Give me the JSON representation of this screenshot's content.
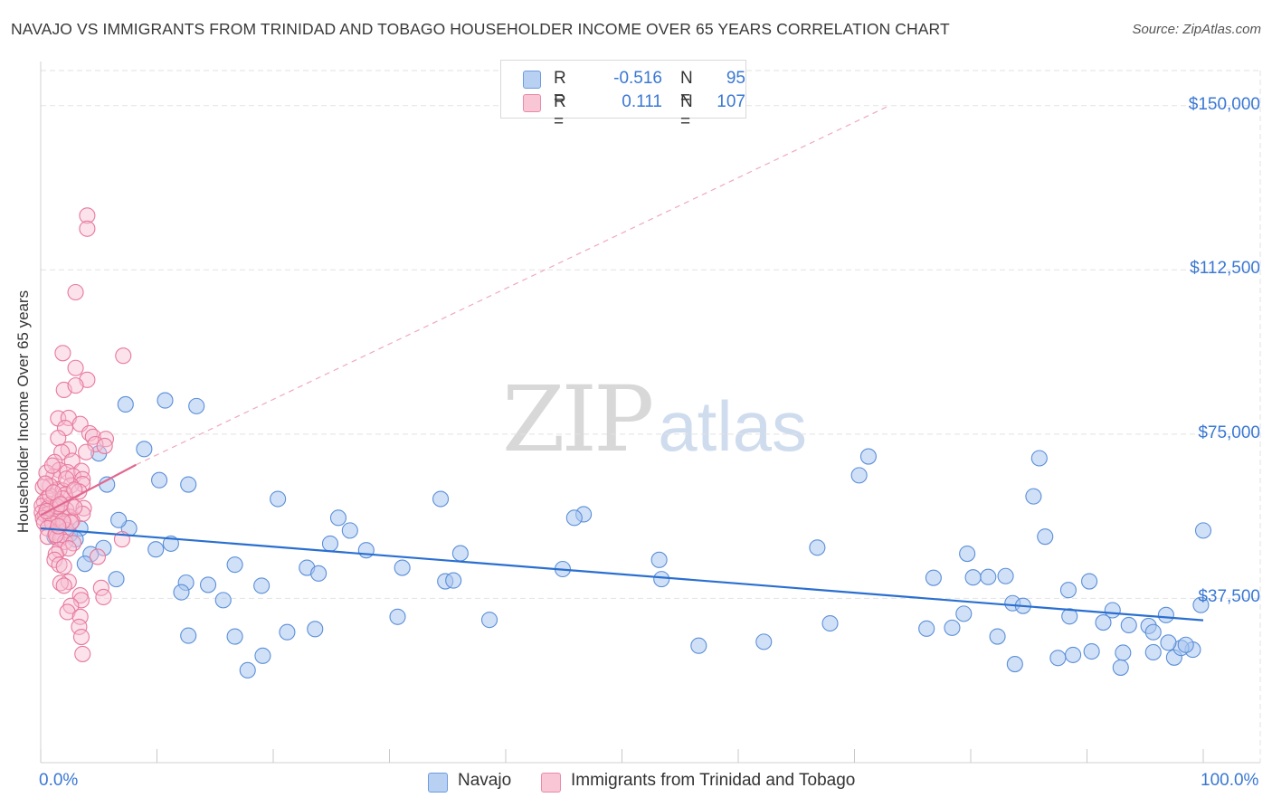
{
  "title": "NAVAJO VS IMMIGRANTS FROM TRINIDAD AND TOBAGO HOUSEHOLDER INCOME OVER 65 YEARS CORRELATION CHART",
  "source": "Source: ZipAtlas.com",
  "watermark": {
    "part1": "ZIP",
    "part2": "atlas"
  },
  "legend": {
    "rows": [
      {
        "r_label": "R =",
        "r_value": "-0.516",
        "n_label": "N =",
        "n_value": "95"
      },
      {
        "r_label": "R =",
        "r_value": "0.111",
        "n_label": "N =",
        "n_value": "107"
      }
    ]
  },
  "colors": {
    "navajo_fill": "#a9c7f0",
    "navajo_stroke": "#5b8fd8",
    "navajo_line": "#2a6fd0",
    "tt_fill": "#f7bfd2",
    "tt_stroke": "#e8799c",
    "tt_line": "#e06890",
    "axis_text": "#3a78d4",
    "grid": "#e2e2e2"
  },
  "chart_data": {
    "type": "scatter",
    "title": "NAVAJO VS IMMIGRANTS FROM TRINIDAD AND TOBAGO HOUSEHOLDER INCOME OVER 65 YEARS CORRELATION CHART",
    "xlabel": "",
    "ylabel": "Householder Income Over 65 years",
    "xlim": [
      0,
      100
    ],
    "ylim": [
      0,
      158000
    ],
    "x_tick_labels": [
      "0.0%",
      "100.0%"
    ],
    "y_ticks": [
      37500,
      75000,
      112500,
      150000
    ],
    "y_tick_labels": [
      "$37,500",
      "$75,000",
      "$112,500",
      "$150,000"
    ],
    "legend_position": "top-center",
    "series": [
      {
        "name": "Navajo",
        "r": -0.516,
        "n": 95,
        "trend": {
          "x0": 0,
          "y0": 53500,
          "x1": 100,
          "y1": 32500
        },
        "points": [
          [
            7.3,
            81800
          ],
          [
            10.7,
            82700
          ],
          [
            13.4,
            81400
          ],
          [
            5,
            70600
          ],
          [
            8.9,
            71600
          ],
          [
            10.2,
            64500
          ],
          [
            12.7,
            63500
          ],
          [
            5.7,
            63500
          ],
          [
            20.4,
            60200
          ],
          [
            34.4,
            60200
          ],
          [
            46.7,
            56700
          ],
          [
            45.9,
            55900
          ],
          [
            25.6,
            55900
          ],
          [
            26.6,
            53000
          ],
          [
            7.6,
            53500
          ],
          [
            6.7,
            55400
          ],
          [
            3.4,
            53500
          ],
          [
            1.2,
            51600
          ],
          [
            1.6,
            55400
          ],
          [
            2.5,
            52100
          ],
          [
            11.2,
            50000
          ],
          [
            24.9,
            50000
          ],
          [
            28,
            48500
          ],
          [
            36.1,
            47800
          ],
          [
            9.9,
            48700
          ],
          [
            5.4,
            49000
          ],
          [
            4.3,
            47600
          ],
          [
            3,
            51000
          ],
          [
            3.8,
            45400
          ],
          [
            16.7,
            45200
          ],
          [
            22.9,
            44500
          ],
          [
            31.1,
            44500
          ],
          [
            23.9,
            43200
          ],
          [
            44.9,
            44200
          ],
          [
            53.2,
            46300
          ],
          [
            53.4,
            41900
          ],
          [
            34.8,
            41400
          ],
          [
            35.5,
            41600
          ],
          [
            12.5,
            41100
          ],
          [
            14.4,
            40600
          ],
          [
            19,
            40400
          ],
          [
            6.5,
            41900
          ],
          [
            12.1,
            38900
          ],
          [
            15.7,
            37100
          ],
          [
            71.2,
            69900
          ],
          [
            70.4,
            65600
          ],
          [
            85.9,
            69500
          ],
          [
            85.4,
            60800
          ],
          [
            86.4,
            51600
          ],
          [
            83,
            42600
          ],
          [
            81.5,
            42400
          ],
          [
            80.2,
            42300
          ],
          [
            88.4,
            39400
          ],
          [
            90.2,
            41400
          ],
          [
            83.6,
            36400
          ],
          [
            100,
            53000
          ],
          [
            66.8,
            49100
          ],
          [
            79.7,
            47700
          ],
          [
            76.8,
            42200
          ],
          [
            84.5,
            35800
          ],
          [
            79.4,
            34000
          ],
          [
            92.2,
            34800
          ],
          [
            88.5,
            33400
          ],
          [
            91.4,
            32000
          ],
          [
            93.6,
            31400
          ],
          [
            95.3,
            31200
          ],
          [
            95.7,
            29800
          ],
          [
            96.8,
            33700
          ],
          [
            99.8,
            36000
          ],
          [
            78.4,
            30800
          ],
          [
            82.3,
            28800
          ],
          [
            76.2,
            30600
          ],
          [
            67.9,
            31800
          ],
          [
            62.2,
            27600
          ],
          [
            56.6,
            26700
          ],
          [
            30.7,
            33300
          ],
          [
            38.6,
            32600
          ],
          [
            23.6,
            30500
          ],
          [
            21.2,
            29800
          ],
          [
            16.7,
            28800
          ],
          [
            12.7,
            29000
          ],
          [
            19.1,
            24400
          ],
          [
            17.8,
            21100
          ],
          [
            88.8,
            24600
          ],
          [
            90.4,
            25400
          ],
          [
            93.1,
            25100
          ],
          [
            92.9,
            21700
          ],
          [
            95.7,
            25200
          ],
          [
            97.5,
            24000
          ],
          [
            99.1,
            25800
          ],
          [
            98.1,
            26200
          ],
          [
            83.8,
            22500
          ],
          [
            87.5,
            23900
          ],
          [
            97,
            27400
          ],
          [
            98.5,
            26900
          ]
        ]
      },
      {
        "name": "Immigrants from Trinidad and Tobago",
        "r": 0.111,
        "n": 107,
        "trend_solid": {
          "x0": 0,
          "y0": 56500,
          "x1": 8.2,
          "y1": 68000
        },
        "trend_dashed": {
          "x0": 8.2,
          "y0": 68000,
          "x1": 73,
          "y1": 150000
        },
        "points": [
          [
            4,
            124900
          ],
          [
            4,
            121900
          ],
          [
            3,
            107400
          ],
          [
            1.9,
            93500
          ],
          [
            7.1,
            92900
          ],
          [
            3,
            90100
          ],
          [
            4,
            87400
          ],
          [
            2,
            85100
          ],
          [
            3,
            86100
          ],
          [
            1.5,
            78600
          ],
          [
            2.4,
            78700
          ],
          [
            3.4,
            77300
          ],
          [
            2.1,
            76400
          ],
          [
            4.2,
            75200
          ],
          [
            4.5,
            74400
          ],
          [
            5.6,
            73900
          ],
          [
            1.5,
            74100
          ],
          [
            4.7,
            72700
          ],
          [
            2.4,
            71500
          ],
          [
            1.8,
            70900
          ],
          [
            2.7,
            68900
          ],
          [
            1.2,
            68600
          ],
          [
            1.6,
            66800
          ],
          [
            2.3,
            66300
          ],
          [
            3.5,
            66600
          ],
          [
            2.8,
            65400
          ],
          [
            3.6,
            64700
          ],
          [
            1.1,
            65300
          ],
          [
            0.5,
            66200
          ],
          [
            3.6,
            63600
          ],
          [
            2.6,
            63300
          ],
          [
            1.5,
            62400
          ],
          [
            0.8,
            63200
          ],
          [
            1.9,
            62100
          ],
          [
            0.2,
            62900
          ],
          [
            2.1,
            61200
          ],
          [
            3.3,
            61900
          ],
          [
            0.6,
            60500
          ],
          [
            0.3,
            59500
          ],
          [
            0.9,
            59000
          ],
          [
            1.5,
            59600
          ],
          [
            2.6,
            58900
          ],
          [
            3.7,
            58100
          ],
          [
            0.1,
            58600
          ],
          [
            0.6,
            58000
          ],
          [
            1.4,
            57800
          ],
          [
            2.2,
            57700
          ],
          [
            0.1,
            57100
          ],
          [
            0.4,
            56600
          ],
          [
            0.7,
            56800
          ],
          [
            1.2,
            56400
          ],
          [
            1.8,
            57200
          ],
          [
            3.6,
            56800
          ],
          [
            0.2,
            55800
          ],
          [
            0.9,
            55500
          ],
          [
            1.5,
            55700
          ],
          [
            2.5,
            56100
          ],
          [
            0.3,
            54800
          ],
          [
            1,
            54600
          ],
          [
            2,
            54600
          ],
          [
            2.7,
            55200
          ],
          [
            0.6,
            53500
          ],
          [
            1.3,
            52600
          ],
          [
            2.2,
            53100
          ],
          [
            0.6,
            51600
          ],
          [
            1.4,
            51400
          ],
          [
            1.7,
            51200
          ],
          [
            2.1,
            50400
          ],
          [
            2.8,
            50100
          ],
          [
            7,
            51000
          ],
          [
            1.6,
            48600
          ],
          [
            2.4,
            48900
          ],
          [
            1.3,
            47600
          ],
          [
            4.9,
            47000
          ],
          [
            1.2,
            46300
          ],
          [
            1.6,
            45200
          ],
          [
            2,
            44800
          ],
          [
            2.4,
            41300
          ],
          [
            1.7,
            41000
          ],
          [
            2,
            40400
          ],
          [
            5.2,
            39900
          ],
          [
            3.4,
            38200
          ],
          [
            3.5,
            37100
          ],
          [
            5.4,
            37800
          ],
          [
            2.6,
            35800
          ],
          [
            2.3,
            34400
          ],
          [
            3.4,
            33300
          ],
          [
            3.3,
            31000
          ],
          [
            3.5,
            28700
          ],
          [
            3.6,
            24800
          ],
          [
            1.3,
            52000
          ],
          [
            2.9,
            58300
          ],
          [
            0.8,
            60900
          ],
          [
            1.9,
            60300
          ],
          [
            2.6,
            54800
          ],
          [
            1.4,
            58500
          ],
          [
            0.5,
            57400
          ],
          [
            1.9,
            55100
          ],
          [
            0.4,
            63700
          ],
          [
            1.1,
            61700
          ],
          [
            2.2,
            64800
          ],
          [
            1,
            67800
          ],
          [
            2.9,
            62300
          ],
          [
            1.7,
            59000
          ],
          [
            3.9,
            70900
          ],
          [
            5.5,
            72300
          ],
          [
            1.5,
            54000
          ]
        ]
      }
    ]
  },
  "bottom_legend": {
    "items": [
      "Navajo",
      "Immigrants from Trinidad and Tobago"
    ]
  }
}
